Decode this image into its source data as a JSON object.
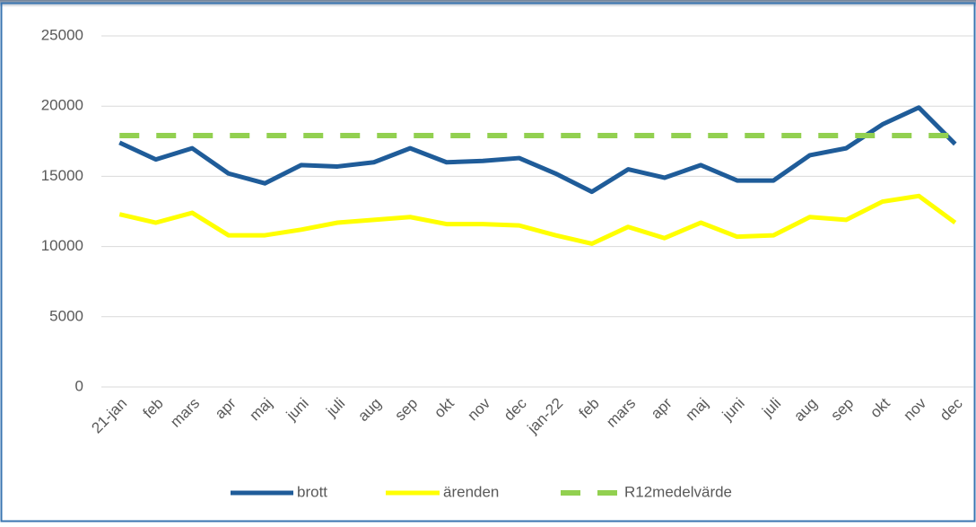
{
  "chart_data": {
    "type": "line",
    "categories": [
      "21-jan",
      "feb",
      "mars",
      "apr",
      "maj",
      "juni",
      "juli",
      "aug",
      "sep",
      "okt",
      "nov",
      "dec",
      "jan-22",
      "feb",
      "mars",
      "apr",
      "maj",
      "juni",
      "juli",
      "aug",
      "sep",
      "okt",
      "nov",
      "dec"
    ],
    "series": [
      {
        "name": "brott",
        "color": "#1f5c99",
        "values": [
          17400,
          16200,
          17000,
          15200,
          14500,
          15800,
          15700,
          16000,
          17000,
          16000,
          16100,
          16300,
          15200,
          13900,
          15500,
          14900,
          15800,
          14700,
          14700,
          16500,
          17000,
          18700,
          19900,
          17300
        ]
      },
      {
        "name": "ärenden",
        "color": "#ffff00",
        "values": [
          12300,
          11700,
          12400,
          10800,
          10800,
          11200,
          11700,
          11900,
          12100,
          11600,
          11600,
          11500,
          10800,
          10200,
          11400,
          10600,
          11700,
          10700,
          10800,
          12100,
          11900,
          13200,
          13600,
          11700
        ]
      },
      {
        "name": "R12medelvärde",
        "color": "#92d050",
        "dashed": true,
        "values": [
          17900,
          17900,
          17900,
          17900,
          17900,
          17900,
          17900,
          17900,
          17900,
          17900,
          17900,
          17900,
          17900,
          17900,
          17900,
          17900,
          17900,
          17900,
          17900,
          17900,
          17900,
          17900,
          17900,
          17900
        ]
      }
    ],
    "ylim": [
      0,
      25000
    ],
    "yticks": [
      0,
      5000,
      10000,
      15000,
      20000,
      25000
    ],
    "grid": true,
    "legend": "bottom"
  }
}
